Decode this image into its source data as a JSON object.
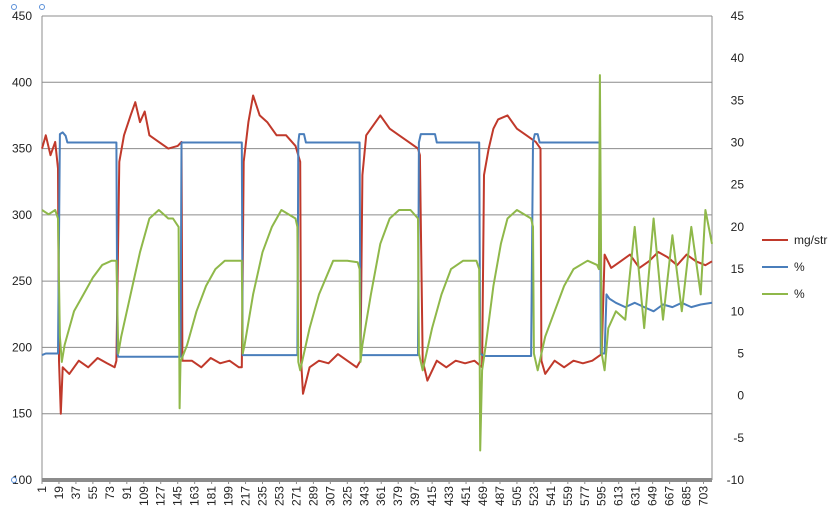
{
  "chart_data": {
    "type": "line",
    "x_ticks": [
      "1",
      "19",
      "37",
      "55",
      "73",
      "91",
      "109",
      "127",
      "145",
      "163",
      "181",
      "199",
      "217",
      "235",
      "253",
      "271",
      "289",
      "307",
      "325",
      "343",
      "361",
      "379",
      "397",
      "415",
      "433",
      "451",
      "469",
      "487",
      "505",
      "523",
      "541",
      "559",
      "577",
      "595",
      "613",
      "631",
      "649",
      "667",
      "685",
      "703"
    ],
    "x_range": [
      1,
      712
    ],
    "y_left": {
      "range": [
        100,
        450
      ],
      "ticks": [
        "100",
        "150",
        "200",
        "250",
        "300",
        "350",
        "400",
        "450"
      ]
    },
    "y_right": {
      "range": [
        -10,
        45
      ],
      "ticks": [
        "-10",
        "-5",
        "0",
        "5",
        "10",
        "15",
        "20",
        "25",
        "30",
        "35",
        "40",
        "45"
      ]
    },
    "grid": "horizontal",
    "legend_placement": "right",
    "series": [
      {
        "name": "mg/str",
        "axis": "left",
        "color": "#c0392b",
        "points": [
          [
            1,
            350
          ],
          [
            5,
            360
          ],
          [
            10,
            345
          ],
          [
            15,
            355
          ],
          [
            18,
            335
          ],
          [
            19,
            190
          ],
          [
            21,
            150
          ],
          [
            23,
            185
          ],
          [
            30,
            180
          ],
          [
            40,
            190
          ],
          [
            50,
            185
          ],
          [
            60,
            192
          ],
          [
            70,
            188
          ],
          [
            78,
            185
          ],
          [
            80,
            190
          ],
          [
            83,
            340
          ],
          [
            88,
            360
          ],
          [
            95,
            375
          ],
          [
            100,
            385
          ],
          [
            105,
            370
          ],
          [
            110,
            378
          ],
          [
            115,
            360
          ],
          [
            125,
            355
          ],
          [
            135,
            350
          ],
          [
            145,
            352
          ],
          [
            149,
            355
          ],
          [
            150,
            190
          ],
          [
            160,
            190
          ],
          [
            170,
            185
          ],
          [
            180,
            192
          ],
          [
            190,
            188
          ],
          [
            200,
            190
          ],
          [
            210,
            185
          ],
          [
            213,
            185
          ],
          [
            215,
            340
          ],
          [
            220,
            370
          ],
          [
            225,
            390
          ],
          [
            232,
            375
          ],
          [
            240,
            370
          ],
          [
            250,
            360
          ],
          [
            260,
            360
          ],
          [
            270,
            352
          ],
          [
            275,
            340
          ],
          [
            276,
            190
          ],
          [
            278,
            165
          ],
          [
            285,
            185
          ],
          [
            295,
            190
          ],
          [
            305,
            188
          ],
          [
            315,
            195
          ],
          [
            325,
            190
          ],
          [
            335,
            185
          ],
          [
            339,
            190
          ],
          [
            341,
            330
          ],
          [
            345,
            360
          ],
          [
            350,
            365
          ],
          [
            360,
            375
          ],
          [
            370,
            365
          ],
          [
            380,
            360
          ],
          [
            390,
            355
          ],
          [
            400,
            350
          ],
          [
            402,
            345
          ],
          [
            405,
            190
          ],
          [
            410,
            175
          ],
          [
            420,
            190
          ],
          [
            430,
            185
          ],
          [
            440,
            190
          ],
          [
            450,
            188
          ],
          [
            460,
            190
          ],
          [
            468,
            185
          ],
          [
            470,
            330
          ],
          [
            475,
            350
          ],
          [
            480,
            365
          ],
          [
            485,
            372
          ],
          [
            495,
            375
          ],
          [
            505,
            365
          ],
          [
            515,
            360
          ],
          [
            525,
            355
          ],
          [
            530,
            350
          ],
          [
            531,
            190
          ],
          [
            535,
            180
          ],
          [
            545,
            190
          ],
          [
            555,
            185
          ],
          [
            565,
            190
          ],
          [
            575,
            188
          ],
          [
            585,
            190
          ],
          [
            595,
            195
          ],
          [
            598,
            270
          ],
          [
            605,
            260
          ],
          [
            615,
            265
          ],
          [
            625,
            270
          ],
          [
            635,
            260
          ],
          [
            645,
            265
          ],
          [
            655,
            272
          ],
          [
            665,
            268
          ],
          [
            675,
            262
          ],
          [
            685,
            270
          ],
          [
            695,
            265
          ],
          [
            705,
            262
          ],
          [
            712,
            265
          ]
        ]
      },
      {
        "name": "%",
        "axis": "right",
        "color": "#4a7ebb",
        "points": [
          [
            1,
            4.8
          ],
          [
            5,
            5
          ],
          [
            18,
            5
          ],
          [
            20,
            31
          ],
          [
            23,
            31.2
          ],
          [
            26,
            30.8
          ],
          [
            28,
            30
          ],
          [
            80,
            30
          ],
          [
            81,
            5
          ],
          [
            82,
            4.6
          ],
          [
            148,
            4.6
          ],
          [
            149,
            30
          ],
          [
            210,
            30
          ],
          [
            213,
            30
          ],
          [
            214,
            4.8
          ],
          [
            217,
            4.8
          ],
          [
            272,
            4.8
          ],
          [
            273,
            30
          ],
          [
            274,
            31
          ],
          [
            279,
            31
          ],
          [
            281,
            30
          ],
          [
            338,
            30
          ],
          [
            339,
            5
          ],
          [
            340,
            4.8
          ],
          [
            400,
            4.8
          ],
          [
            401,
            30
          ],
          [
            403,
            31
          ],
          [
            418,
            31
          ],
          [
            420,
            30
          ],
          [
            465,
            30
          ],
          [
            466,
            5
          ],
          [
            470,
            4.7
          ],
          [
            520,
            4.7
          ],
          [
            522,
            30
          ],
          [
            524,
            31
          ],
          [
            527,
            31
          ],
          [
            529,
            30
          ],
          [
            593,
            30
          ],
          [
            594,
            5
          ],
          [
            598,
            5
          ],
          [
            600,
            12
          ],
          [
            603,
            11.5
          ],
          [
            610,
            11
          ],
          [
            620,
            10.5
          ],
          [
            630,
            11
          ],
          [
            640,
            10.5
          ],
          [
            650,
            10
          ],
          [
            660,
            10.8
          ],
          [
            670,
            10.5
          ],
          [
            680,
            11
          ],
          [
            690,
            10.5
          ],
          [
            700,
            10.8
          ],
          [
            712,
            11
          ]
        ]
      },
      {
        "name": "%",
        "axis": "right",
        "color": "#8fb84a",
        "points": [
          [
            1,
            22
          ],
          [
            8,
            21.5
          ],
          [
            15,
            22
          ],
          [
            18,
            21
          ],
          [
            20,
            7
          ],
          [
            22,
            4
          ],
          [
            25,
            6
          ],
          [
            30,
            8
          ],
          [
            35,
            10
          ],
          [
            45,
            12
          ],
          [
            55,
            14
          ],
          [
            65,
            15.5
          ],
          [
            75,
            16
          ],
          [
            80,
            16
          ],
          [
            82,
            5
          ],
          [
            85,
            7
          ],
          [
            95,
            12
          ],
          [
            105,
            17
          ],
          [
            115,
            21
          ],
          [
            125,
            22
          ],
          [
            135,
            21
          ],
          [
            140,
            21
          ],
          [
            146,
            20
          ],
          [
            147,
            -1.5
          ],
          [
            148,
            4
          ],
          [
            155,
            6
          ],
          [
            165,
            10
          ],
          [
            175,
            13
          ],
          [
            185,
            15
          ],
          [
            195,
            16
          ],
          [
            210,
            16
          ],
          [
            213,
            16
          ],
          [
            214,
            5
          ],
          [
            216,
            6
          ],
          [
            225,
            12
          ],
          [
            235,
            17
          ],
          [
            245,
            20
          ],
          [
            255,
            22
          ],
          [
            270,
            21
          ],
          [
            272,
            20
          ],
          [
            273,
            4
          ],
          [
            275,
            3
          ],
          [
            285,
            8
          ],
          [
            295,
            12
          ],
          [
            310,
            16
          ],
          [
            325,
            16
          ],
          [
            336,
            15.8
          ],
          [
            338,
            15
          ],
          [
            339,
            4
          ],
          [
            341,
            6
          ],
          [
            350,
            12
          ],
          [
            360,
            18
          ],
          [
            370,
            21
          ],
          [
            380,
            22
          ],
          [
            392,
            22
          ],
          [
            400,
            21
          ],
          [
            401,
            5
          ],
          [
            405,
            3
          ],
          [
            415,
            8
          ],
          [
            425,
            12
          ],
          [
            435,
            15
          ],
          [
            448,
            16
          ],
          [
            462,
            16
          ],
          [
            465,
            15
          ],
          [
            466,
            -6.5
          ],
          [
            468,
            3
          ],
          [
            472,
            6
          ],
          [
            480,
            13
          ],
          [
            488,
            18
          ],
          [
            495,
            21
          ],
          [
            505,
            22
          ],
          [
            520,
            21
          ],
          [
            522,
            20
          ],
          [
            523,
            5
          ],
          [
            527,
            3
          ],
          [
            535,
            7
          ],
          [
            545,
            10
          ],
          [
            555,
            13
          ],
          [
            565,
            15
          ],
          [
            580,
            16
          ],
          [
            590,
            15.5
          ],
          [
            592,
            15
          ],
          [
            593,
            38
          ],
          [
            595,
            5
          ],
          [
            598,
            3
          ],
          [
            602,
            8
          ],
          [
            610,
            10
          ],
          [
            620,
            9
          ],
          [
            630,
            20
          ],
          [
            640,
            8
          ],
          [
            650,
            21
          ],
          [
            660,
            9
          ],
          [
            670,
            19
          ],
          [
            680,
            10
          ],
          [
            690,
            20
          ],
          [
            700,
            12
          ],
          [
            705,
            22
          ],
          [
            712,
            18
          ]
        ]
      }
    ]
  }
}
